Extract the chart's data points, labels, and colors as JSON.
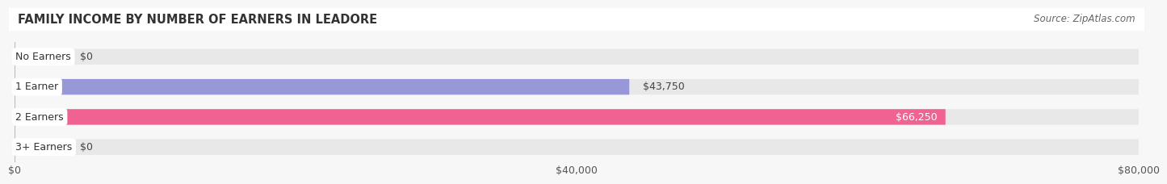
{
  "title": "FAMILY INCOME BY NUMBER OF EARNERS IN LEADORE",
  "source": "Source: ZipAtlas.com",
  "categories": [
    "No Earners",
    "1 Earner",
    "2 Earners",
    "3+ Earners"
  ],
  "values": [
    0,
    43750,
    66250,
    0
  ],
  "bar_colors": [
    "#5ecece",
    "#9898d8",
    "#f06292",
    "#f5c99a"
  ],
  "value_labels": [
    "$0",
    "$43,750",
    "$66,250",
    "$0"
  ],
  "value_label_inside": [
    false,
    false,
    true,
    false
  ],
  "xlim": [
    0,
    80000
  ],
  "xticks": [
    0,
    40000,
    80000
  ],
  "xtick_labels": [
    "$0",
    "$40,000",
    "$80,000"
  ],
  "bar_height": 0.52,
  "figsize": [
    14.06,
    2.33
  ],
  "dpi": 100,
  "bg_color": "#f7f7f7",
  "bar_bg_color": "#e8e8e8",
  "title_fontsize": 10.5,
  "source_fontsize": 8.5,
  "label_fontsize": 9,
  "value_fontsize": 9,
  "tick_fontsize": 9
}
